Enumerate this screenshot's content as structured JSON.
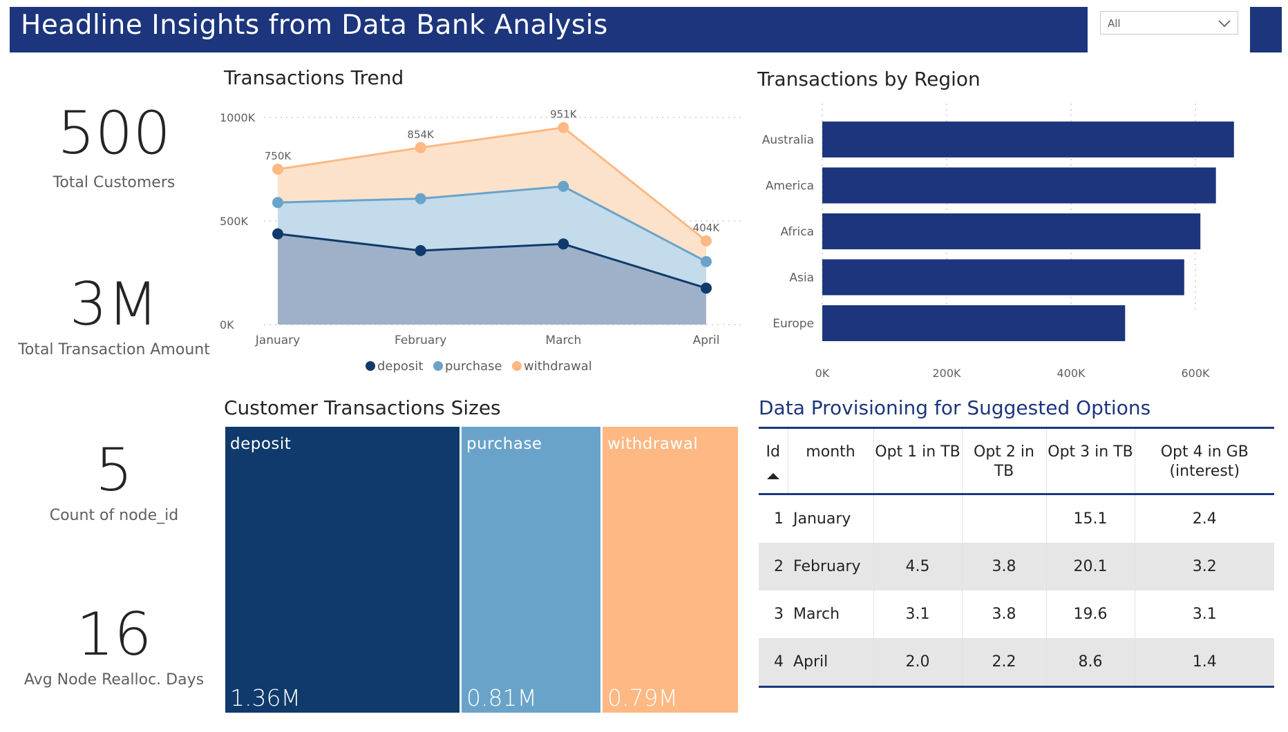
{
  "header": {
    "title": "Headline Insights from Data Bank Analysis",
    "filter_value": "All"
  },
  "kpis": [
    {
      "value": "500",
      "label": "Total Customers"
    },
    {
      "value": "3M",
      "label": "Total Transaction Amount"
    },
    {
      "value": "5",
      "label": "Count of node_id"
    },
    {
      "value": "16",
      "label": "Avg Node Realloc. Days"
    }
  ],
  "trend": {
    "title": "Transactions Trend",
    "y_ticks": [
      "1000K",
      "500K",
      "0K"
    ]
  },
  "region": {
    "title": "Transactions by Region",
    "x_ticks": [
      "0K",
      "200K",
      "400K",
      "600K"
    ]
  },
  "treemap": {
    "title": "Customer Transactions Sizes",
    "cells": [
      {
        "name": "deposit",
        "value_label": "1.36M",
        "value": 1.36,
        "color": "#0f3a6b"
      },
      {
        "name": "purchase",
        "value_label": "0.81M",
        "value": 0.81,
        "color": "#6aa3ca"
      },
      {
        "name": "withdrawal",
        "value_label": "0.79M",
        "value": 0.79,
        "color": "#fdb883"
      }
    ]
  },
  "table": {
    "title": "Data Provisioning for Suggested Options",
    "headers": [
      "Id",
      "month",
      "Opt 1 in TB",
      "Opt 2 in TB",
      "Opt 3 in TB",
      "Opt 4 in GB (interest)"
    ],
    "rows": [
      {
        "id": "1",
        "month": "January",
        "opt1": "",
        "opt2": "",
        "opt3": "15.1",
        "opt4": "2.4"
      },
      {
        "id": "2",
        "month": "February",
        "opt1": "4.5",
        "opt2": "3.8",
        "opt3": "20.1",
        "opt4": "3.2"
      },
      {
        "id": "3",
        "month": "March",
        "opt1": "3.1",
        "opt2": "3.8",
        "opt3": "19.6",
        "opt4": "3.1"
      },
      {
        "id": "4",
        "month": "April",
        "opt1": "2.0",
        "opt2": "2.2",
        "opt3": "8.6",
        "opt4": "1.4"
      }
    ]
  },
  "colors": {
    "header": "#1c357c",
    "deposit": "#0f3a6b",
    "purchase": "#6aa3ca",
    "withdrawal": "#fdb883",
    "bar": "#1c357c"
  },
  "chart_data": [
    {
      "type": "area",
      "title": "Transactions Trend",
      "categories": [
        "January",
        "February",
        "March",
        "April"
      ],
      "stacked": true,
      "ylim": [
        0,
        1000000
      ],
      "y_ticks": [
        "0K",
        "500K",
        "1000K"
      ],
      "series": [
        {
          "name": "deposit",
          "values": [
            438000,
            357000,
            389000,
            176000
          ]
        },
        {
          "name": "purchase",
          "values": [
            151000,
            251000,
            278000,
            128000
          ]
        },
        {
          "name": "withdrawal",
          "values": [
            161000,
            246000,
            284000,
            100000
          ]
        }
      ],
      "totals_labels": [
        "750K",
        "854K",
        "951K",
        "404K"
      ],
      "legend": [
        "deposit",
        "purchase",
        "withdrawal"
      ],
      "legend_position": "bottom",
      "grid": true
    },
    {
      "type": "bar",
      "orientation": "horizontal",
      "title": "Transactions by Region",
      "categories": [
        "Australia",
        "America",
        "Africa",
        "Asia",
        "Europe"
      ],
      "values": [
        662000,
        633000,
        608000,
        582000,
        487000
      ],
      "xlim": [
        0,
        660000
      ],
      "x_ticks": [
        "0K",
        "200K",
        "400K",
        "600K"
      ],
      "grid": true
    },
    {
      "type": "treemap",
      "title": "Customer Transactions Sizes",
      "categories": [
        "deposit",
        "purchase",
        "withdrawal"
      ],
      "values": [
        1.36,
        0.81,
        0.79
      ],
      "unit": "M"
    }
  ]
}
